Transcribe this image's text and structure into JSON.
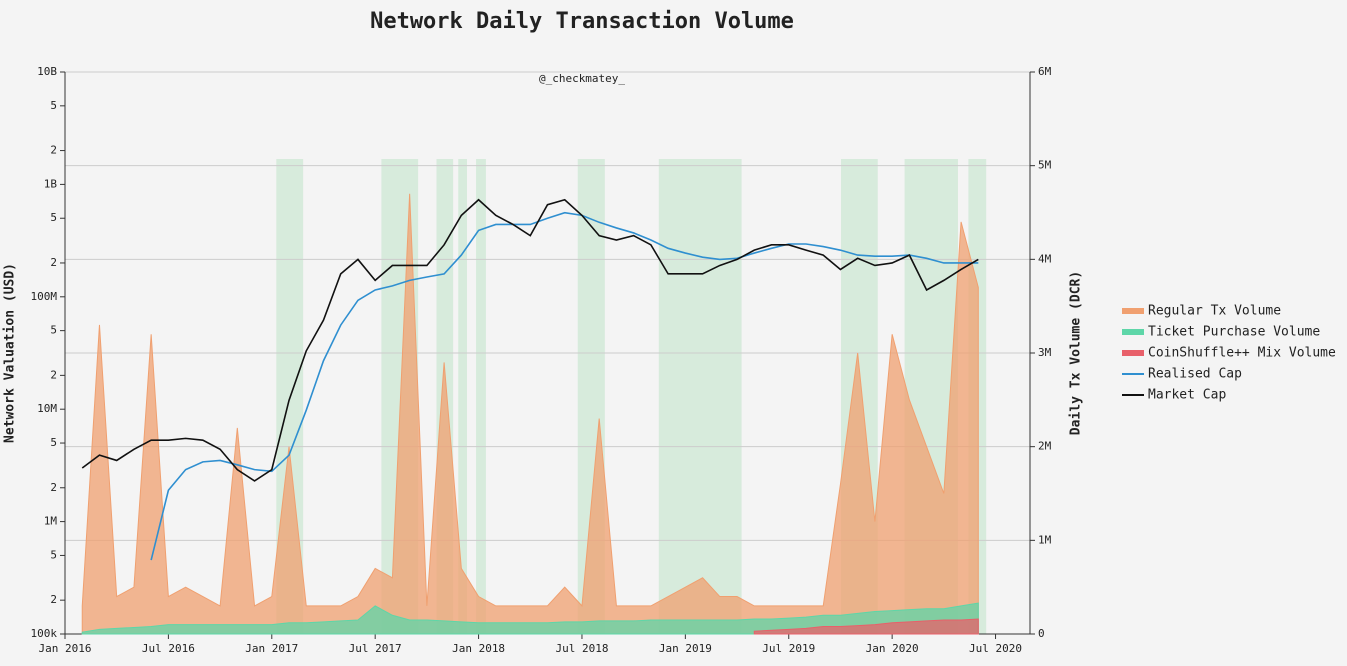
{
  "chart_data": {
    "type": "line",
    "title": "Network Daily Transaction Volume",
    "subtitle": "@_checkmatey_",
    "y_label": "Network Valuation (USD)",
    "y2_label": "Daily Tx Volume (DCR)",
    "log_y": true,
    "grid": "y2",
    "legend": "right",
    "xlim": [
      "2016-01",
      "2020-09"
    ],
    "xticks": [
      {
        "value": "2016-01",
        "label": "Jan 2016"
      },
      {
        "value": "2016-07",
        "label": "Jul 2016"
      },
      {
        "value": "2017-01",
        "label": "Jan 2017"
      },
      {
        "value": "2017-07",
        "label": "Jul 2017"
      },
      {
        "value": "2018-01",
        "label": "Jan 2018"
      },
      {
        "value": "2018-07",
        "label": "Jul 2018"
      },
      {
        "value": "2019-01",
        "label": "Jan 2019"
      },
      {
        "value": "2019-07",
        "label": "Jul 2019"
      },
      {
        "value": "2020-01",
        "label": "Jan 2020"
      },
      {
        "value": "2020-07",
        "label": "Jul 2020"
      }
    ],
    "ylim": [
      100000,
      10000000000
    ],
    "yticks": [
      {
        "value": 100000,
        "label": "100k"
      },
      2,
      5,
      {
        "value": 1000000,
        "label": "1M"
      },
      2,
      5,
      {
        "value": 10000000,
        "label": "10M"
      },
      2,
      5,
      {
        "value": 100000000,
        "label": "100M"
      },
      2,
      5,
      {
        "value": 1000000000,
        "label": "1B"
      },
      2,
      5,
      {
        "value": 10000000000,
        "label": "10B"
      }
    ],
    "y2lim": [
      0,
      6000000
    ],
    "y2ticks": [
      0,
      {
        "value": 1000000,
        "label": "1M"
      },
      {
        "value": 2000000,
        "label": "2M"
      },
      {
        "value": 3000000,
        "label": "3M"
      },
      {
        "value": 4000000,
        "label": "4M"
      },
      {
        "value": 5000000,
        "label": "5M"
      },
      {
        "value": 6000000,
        "label": "6M"
      }
    ],
    "shaded_ranges": [
      [
        "2017-01-09",
        "2017-02-26"
      ],
      [
        "2017-07-12",
        "2017-09-16"
      ],
      [
        "2017-10-18",
        "2017-11-17"
      ],
      [
        "2017-11-26",
        "2017-12-11"
      ],
      [
        "2017-12-27",
        "2018-01-14"
      ],
      [
        "2018-06-24",
        "2018-08-11"
      ],
      [
        "2018-11-15",
        "2019-04-09"
      ],
      [
        "2019-10-02",
        "2019-12-06"
      ],
      [
        "2020-01-23",
        "2020-04-26"
      ],
      [
        "2020-05-14",
        "2020-06-15"
      ]
    ],
    "shade_color": "#cfe8d6",
    "x": [
      "2016-02",
      "2016-03",
      "2016-04",
      "2016-05",
      "2016-06",
      "2016-07",
      "2016-08",
      "2016-09",
      "2016-10",
      "2016-11",
      "2016-12",
      "2017-01",
      "2017-02",
      "2017-03",
      "2017-04",
      "2017-05",
      "2017-06",
      "2017-07",
      "2017-08",
      "2017-09",
      "2017-10",
      "2017-11",
      "2017-12",
      "2018-01",
      "2018-02",
      "2018-03",
      "2018-04",
      "2018-05",
      "2018-06",
      "2018-07",
      "2018-08",
      "2018-09",
      "2018-10",
      "2018-11",
      "2018-12",
      "2019-01",
      "2019-02",
      "2019-03",
      "2019-04",
      "2019-05",
      "2019-06",
      "2019-07",
      "2019-08",
      "2019-09",
      "2019-10",
      "2019-11",
      "2019-12",
      "2020-01",
      "2020-02",
      "2020-03",
      "2020-04",
      "2020-05",
      "2020-06"
    ],
    "series": [
      {
        "name": "Regular Tx Volume",
        "color": "#f0a070",
        "kind": "area",
        "axis": "y2",
        "values": [
          300000,
          3300000,
          400000,
          500000,
          3200000,
          400000,
          500000,
          400000,
          300000,
          2200000,
          300000,
          400000,
          2000000,
          300000,
          300000,
          300000,
          400000,
          700000,
          600000,
          4700000,
          300000,
          2900000,
          700000,
          400000,
          300000,
          300000,
          300000,
          300000,
          500000,
          300000,
          2300000,
          300000,
          300000,
          300000,
          400000,
          500000,
          600000,
          400000,
          400000,
          300000,
          300000,
          300000,
          300000,
          300000,
          1600000,
          3000000,
          1200000,
          3200000,
          2500000,
          2000000,
          1500000,
          4400000,
          3700000
        ]
      },
      {
        "name": "Ticket Purchase Volume",
        "color": "#5ed6a8",
        "kind": "area",
        "axis": "y2",
        "values": [
          20000,
          50000,
          60000,
          70000,
          80000,
          100000,
          100000,
          100000,
          100000,
          100000,
          100000,
          100000,
          120000,
          120000,
          130000,
          140000,
          150000,
          300000,
          200000,
          150000,
          150000,
          140000,
          130000,
          120000,
          120000,
          120000,
          120000,
          120000,
          130000,
          130000,
          140000,
          140000,
          140000,
          150000,
          150000,
          150000,
          150000,
          150000,
          150000,
          160000,
          160000,
          170000,
          180000,
          200000,
          200000,
          220000,
          240000,
          250000,
          260000,
          270000,
          270000,
          300000,
          330000
        ]
      },
      {
        "name": "CoinShuffle++ Mix Volume",
        "color": "#e8606a",
        "kind": "area",
        "axis": "y2",
        "values": [
          null,
          null,
          null,
          null,
          null,
          null,
          null,
          null,
          null,
          null,
          null,
          null,
          null,
          null,
          null,
          null,
          null,
          null,
          null,
          null,
          null,
          null,
          null,
          null,
          null,
          null,
          null,
          null,
          null,
          null,
          null,
          null,
          null,
          null,
          null,
          null,
          null,
          null,
          null,
          30000,
          40000,
          50000,
          60000,
          80000,
          80000,
          90000,
          100000,
          120000,
          130000,
          140000,
          150000,
          150000,
          160000
        ]
      },
      {
        "name": "Realised Cap",
        "color": "#2f8fd0",
        "kind": "line",
        "values": [
          null,
          null,
          null,
          null,
          455000,
          1900000,
          2900000,
          3400000,
          3500000,
          3200000,
          2900000,
          2800000,
          3900000,
          9800000,
          27000000,
          56000000,
          93000000,
          115000000,
          125000000,
          140000000,
          150000000,
          160000000,
          235000000,
          390000000,
          440000000,
          440000000,
          440000000,
          500000000,
          560000000,
          530000000,
          460000000,
          410000000,
          370000000,
          320000000,
          270000000,
          245000000,
          225000000,
          215000000,
          220000000,
          245000000,
          270000000,
          295000000,
          295000000,
          280000000,
          260000000,
          235000000,
          230000000,
          230000000,
          235000000,
          220000000,
          200000000,
          200000000,
          200000000
        ]
      },
      {
        "name": "Market Cap",
        "color": "#111111",
        "kind": "line",
        "values": [
          3000000,
          3900000,
          3500000,
          4400000,
          5300000,
          5300000,
          5500000,
          5300000,
          4400000,
          2900000,
          2300000,
          2900000,
          12000000,
          33000000,
          62000000,
          160000000,
          215000000,
          140000000,
          190000000,
          190000000,
          190000000,
          290000000,
          530000000,
          730000000,
          530000000,
          440000000,
          350000000,
          660000000,
          730000000,
          530000000,
          350000000,
          320000000,
          350000000,
          290000000,
          160000000,
          160000000,
          160000000,
          190000000,
          215000000,
          260000000,
          290000000,
          290000000,
          260000000,
          235000000,
          175000000,
          220000000,
          190000000,
          200000000,
          235000000,
          115000000,
          140000000,
          175000000,
          215000000
        ]
      }
    ]
  }
}
